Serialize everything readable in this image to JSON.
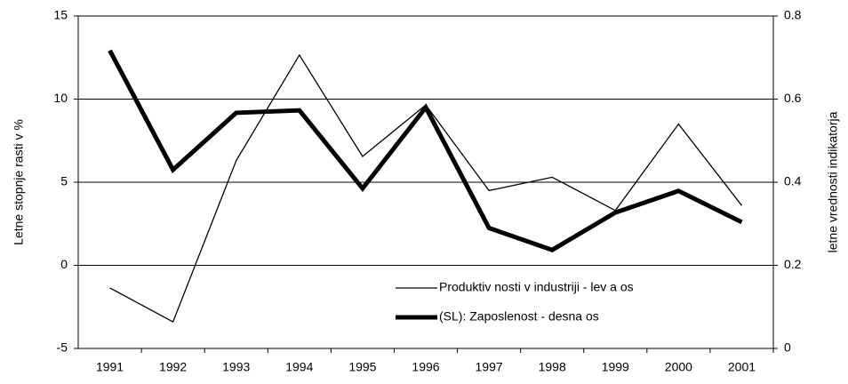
{
  "chart_data": {
    "type": "line",
    "y_label": "Letne stopnje rasti v %",
    "y2_label": "letne vrednosti indikatorja",
    "categories": [
      "1991",
      "1992",
      "1993",
      "1994",
      "1995",
      "1996",
      "1997",
      "1998",
      "1999",
      "2000",
      "2001"
    ],
    "series": [
      {
        "name": "Produktiv nosti v  industriji - lev a os",
        "color": "#000000",
        "width": 1.3,
        "axis": "y",
        "values": [
          -1.36,
          -3.4,
          6.3,
          12.65,
          6.55,
          9.65,
          4.5,
          5.3,
          3.3,
          8.5,
          3.6
        ]
      },
      {
        "name": "(SL): Zaposlenost - desna os",
        "color": "#000000",
        "width": 5,
        "axis": "y2",
        "values": [
          0.717,
          0.43,
          0.567,
          0.573,
          0.385,
          0.58,
          0.29,
          0.237,
          0.327,
          0.379,
          0.304
        ]
      }
    ],
    "ylim": [
      -5,
      15
    ],
    "yticks": [
      -5,
      0,
      5,
      10,
      15
    ],
    "y2lim": [
      0,
      0.8
    ],
    "y2ticks": [
      0,
      0.2,
      0.4,
      0.6,
      0.8
    ],
    "grid": true
  }
}
